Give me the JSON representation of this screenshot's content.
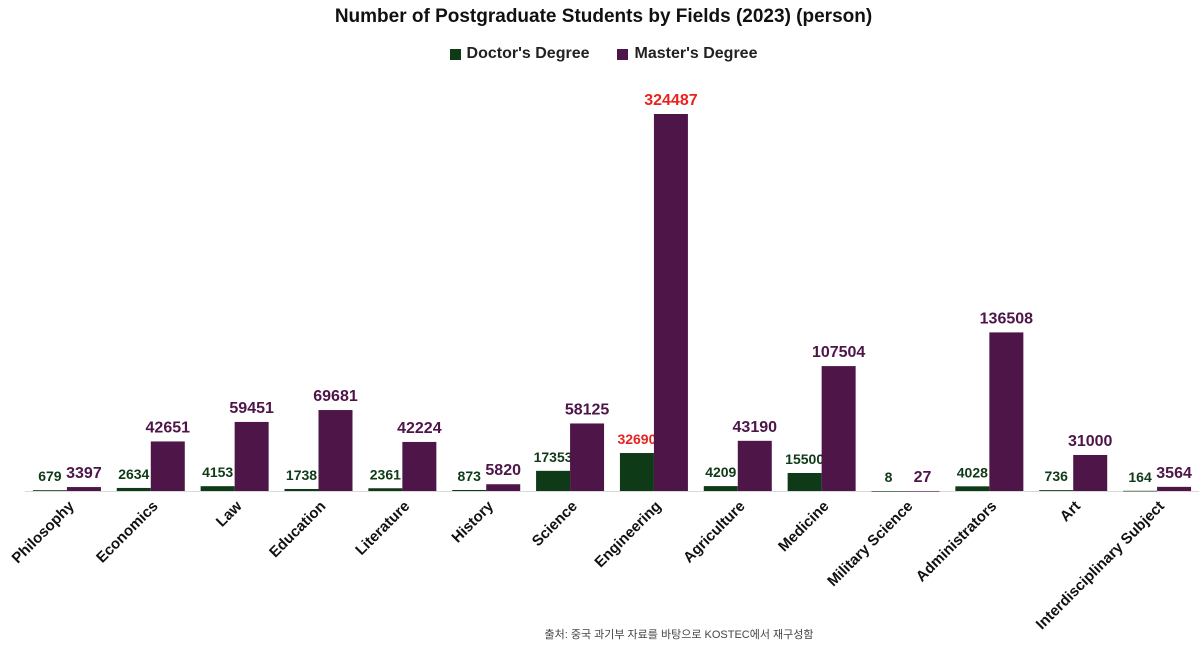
{
  "chart_data": {
    "type": "bar",
    "title": "Number of Postgraduate Students by Fields (2023) (person)",
    "xlabel": "",
    "ylabel": "",
    "ylim": [
      0,
      330000
    ],
    "grid": false,
    "legend_position": "top-center",
    "categories": [
      "Philosophy",
      "Economics",
      "Law",
      "Education",
      "Literature",
      "History",
      "Science",
      "Engineering",
      "Agriculture",
      "Medicine",
      "Military Science",
      "Administrators",
      "Art",
      "Interdisciplinary Subject"
    ],
    "series": [
      {
        "name": "Doctor's Degree",
        "color": "#0f3a17",
        "values": [
          679,
          2634,
          4153,
          1738,
          2361,
          873,
          17353,
          32690,
          4209,
          15500,
          8,
          4028,
          736,
          164
        ]
      },
      {
        "name": "Master's Degree",
        "color": "#4d1548",
        "values": [
          3397,
          42651,
          59451,
          69681,
          42224,
          5820,
          58125,
          324487,
          43190,
          107504,
          27,
          136508,
          31000,
          3564
        ]
      }
    ],
    "highlight": {
      "category": "Engineering",
      "label_color": "#e8231f"
    }
  },
  "source_note": "출처: 중국 과기부 자료를 바탕으로 KOSTEC에서 재구성함"
}
